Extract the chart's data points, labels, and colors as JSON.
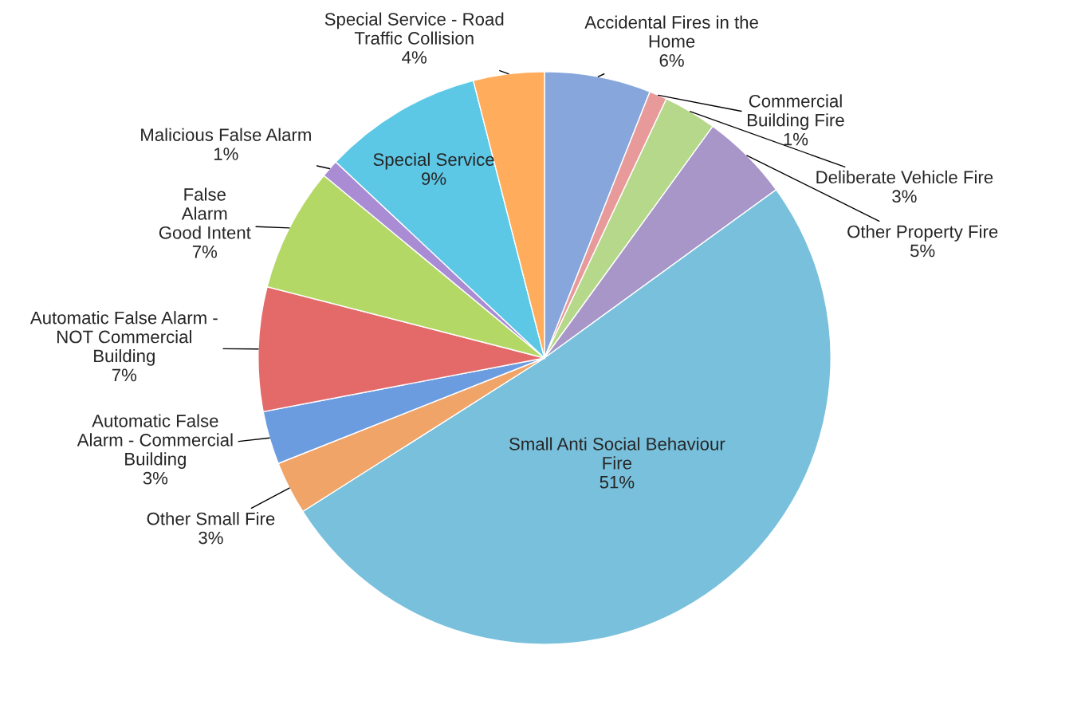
{
  "chart_data": {
    "type": "pie",
    "categories": [
      "Accidental Fires in the\nHome",
      "Commercial\nBuilding Fire",
      "Deliberate Vehicle Fire",
      "Other Property Fire",
      "Small Anti Social Behaviour\nFire",
      "Other Small Fire",
      "Automatic False\nAlarm - Commercial\nBuilding",
      "Automatic False Alarm -\nNOT Commercial\nBuilding",
      "False\nAlarm\nGood Intent",
      "Malicious False Alarm",
      "Special Service",
      "Special Service - Road\nTraffic Collision"
    ],
    "values": [
      6,
      1,
      3,
      5,
      51,
      3,
      3,
      7,
      7,
      1,
      9,
      4
    ],
    "value_labels": [
      "6%",
      "1%",
      "3%",
      "5%",
      "51%",
      "3%",
      "3%",
      "7%",
      "7%",
      "1%",
      "9%",
      "4%"
    ],
    "colors": [
      "#86a6dc",
      "#e89a9a",
      "#b6d88a",
      "#a896c8",
      "#78c0dc",
      "#f0a468",
      "#6c9ce0",
      "#e46a6a",
      "#b4d866",
      "#aa8cd4",
      "#5cc8e6",
      "#ffac5c"
    ],
    "legend": false
  }
}
